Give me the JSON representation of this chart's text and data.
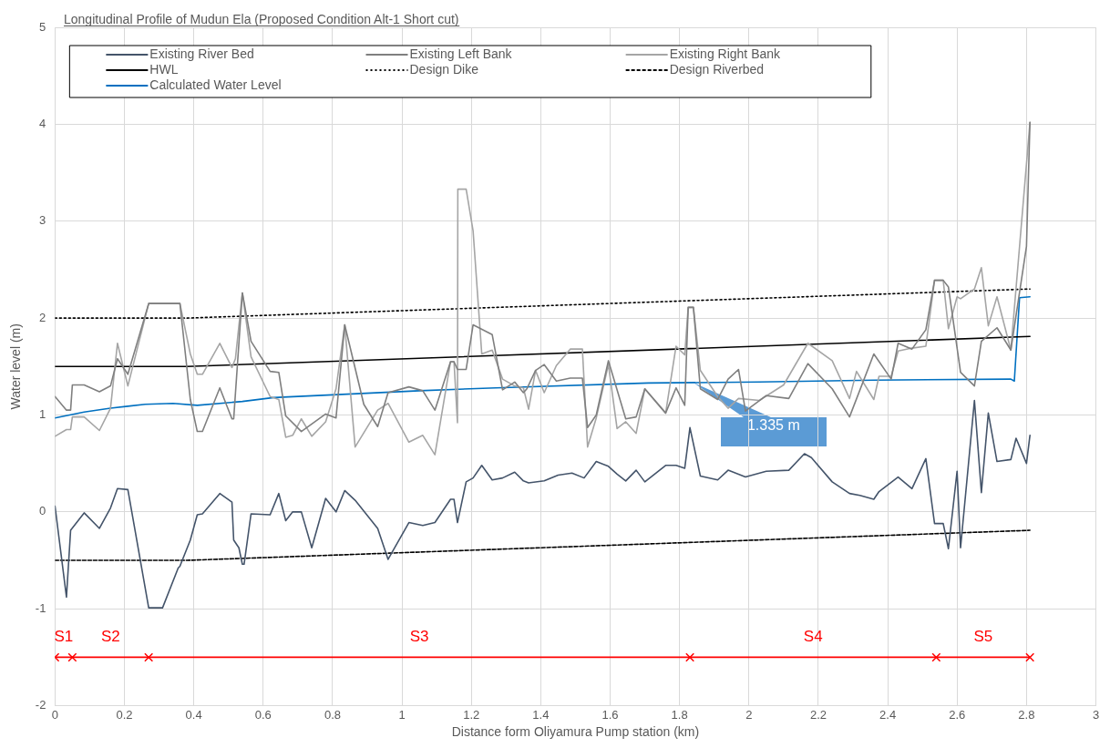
{
  "chart_data": {
    "type": "line",
    "title": "Longitudinal Profile of Mudun Ela (Proposed Condition Alt-1 Short cut)",
    "xlabel": "Distance form Oliyamura Pump station (km)",
    "ylabel": "Water level (m)",
    "xlim": [
      0,
      3
    ],
    "xticks": [
      0,
      0.2,
      0.4,
      0.6,
      0.8,
      1,
      1.2,
      1.4,
      1.6,
      1.8,
      2,
      2.2,
      2.4,
      2.6,
      2.8,
      3
    ],
    "ylim": [
      -2,
      5
    ],
    "yticks": [
      -2,
      -1,
      0,
      1,
      2,
      3,
      4,
      5
    ],
    "grid": true,
    "legend": "top",
    "marker": "none",
    "series": [
      {
        "name": "Existing River Bed",
        "color": "#44546a",
        "x": [
          0,
          0.033,
          0.045,
          0.084,
          0.128,
          0.16,
          0.18,
          0.21,
          0.27,
          0.31,
          0.355,
          0.36,
          0.39,
          0.41,
          0.425,
          0.475,
          0.51,
          0.515,
          0.53,
          0.54,
          0.545,
          0.565,
          0.62,
          0.645,
          0.665,
          0.685,
          0.71,
          0.74,
          0.78,
          0.81,
          0.835,
          0.865,
          0.93,
          0.96,
          1.02,
          1.06,
          1.095,
          1.14,
          1.15,
          1.16,
          1.185,
          1.205,
          1.23,
          1.26,
          1.29,
          1.325,
          1.35,
          1.365,
          1.41,
          1.45,
          1.49,
          1.525,
          1.56,
          1.595,
          1.62,
          1.645,
          1.675,
          1.7,
          1.76,
          1.79,
          1.815,
          1.83,
          1.86,
          1.91,
          1.94,
          1.99,
          2.05,
          2.115,
          2.16,
          2.18,
          2.24,
          2.29,
          2.32,
          2.36,
          2.375,
          2.43,
          2.47,
          2.51,
          2.535,
          2.56,
          2.575,
          2.6,
          2.61,
          2.65,
          2.67,
          2.69,
          2.715,
          2.755,
          2.77,
          2.8,
          2.81
        ],
        "values": [
          0.06,
          -0.88,
          -0.19,
          -0.01,
          -0.17,
          0.04,
          0.24,
          0.23,
          -0.99,
          -0.99,
          -0.58,
          -0.56,
          -0.29,
          -0.03,
          -0.02,
          0.19,
          0.1,
          -0.29,
          -0.37,
          -0.54,
          -0.54,
          -0.02,
          -0.03,
          0.19,
          -0.09,
          0,
          0,
          -0.37,
          0.14,
          0,
          0.22,
          0.12,
          -0.17,
          -0.49,
          -0.11,
          -0.14,
          -0.11,
          0.13,
          0.13,
          -0.11,
          0.31,
          0.35,
          0.48,
          0.33,
          0.35,
          0.41,
          0.32,
          0.3,
          0.32,
          0.38,
          0.4,
          0.35,
          0.52,
          0.47,
          0.39,
          0.32,
          0.43,
          0.31,
          0.48,
          0.48,
          0.45,
          0.87,
          0.37,
          0.33,
          0.43,
          0.36,
          0.42,
          0.43,
          0.6,
          0.56,
          0.31,
          0.19,
          0.17,
          0.13,
          0.21,
          0.36,
          0.24,
          0.55,
          -0.12,
          -0.12,
          -0.38,
          0.42,
          -0.37,
          1.15,
          0.2,
          1.02,
          0.52,
          0.54,
          0.76,
          0.5,
          0.79
        ]
      },
      {
        "name": "Existing Left Bank",
        "color": "#7f7f7f",
        "x": [
          0,
          0.033,
          0.045,
          0.05,
          0.084,
          0.128,
          0.16,
          0.18,
          0.21,
          0.27,
          0.36,
          0.39,
          0.41,
          0.425,
          0.475,
          0.51,
          0.515,
          0.54,
          0.565,
          0.62,
          0.645,
          0.665,
          0.71,
          0.78,
          0.81,
          0.835,
          0.89,
          0.93,
          0.96,
          1.02,
          1.06,
          1.095,
          1.14,
          1.15,
          1.16,
          1.185,
          1.205,
          1.26,
          1.29,
          1.325,
          1.35,
          1.36,
          1.385,
          1.41,
          1.445,
          1.485,
          1.52,
          1.535,
          1.56,
          1.595,
          1.645,
          1.675,
          1.7,
          1.76,
          1.79,
          1.815,
          1.825,
          1.84,
          1.86,
          1.91,
          1.94,
          1.97,
          1.99,
          2.05,
          2.115,
          2.17,
          2.24,
          2.29,
          2.36,
          2.41,
          2.43,
          2.47,
          2.51,
          2.535,
          2.56,
          2.575,
          2.61,
          2.65,
          2.67,
          2.715,
          2.755,
          2.8,
          2.81
        ],
        "values": [
          1.19,
          1.05,
          1.05,
          1.31,
          1.31,
          1.24,
          1.3,
          1.58,
          1.42,
          2.15,
          2.15,
          1.16,
          0.83,
          0.83,
          1.28,
          0.96,
          0.96,
          2.26,
          1.76,
          1.45,
          1.44,
          0.99,
          0.83,
          1.01,
          0.97,
          1.93,
          1.11,
          0.88,
          1.23,
          1.29,
          1.25,
          1.05,
          1.55,
          1.55,
          1.47,
          1.47,
          1.93,
          1.83,
          1.26,
          1.34,
          1.23,
          1.27,
          1.46,
          1.52,
          1.35,
          1.38,
          1.38,
          0.87,
          1,
          1.56,
          0.96,
          0.98,
          1.27,
          1.02,
          1.28,
          1.1,
          2.11,
          2.11,
          1.27,
          1.16,
          1.37,
          1.47,
          1.04,
          1.2,
          1.17,
          1.53,
          1.27,
          0.98,
          1.63,
          1.37,
          1.74,
          1.68,
          1.88,
          2.39,
          2.39,
          2.32,
          1.44,
          1.3,
          1.76,
          1.9,
          1.67,
          2.74,
          4.02
        ]
      },
      {
        "name": "Existing Right Bank",
        "color": "#a5a5a5",
        "x": [
          0,
          0.033,
          0.045,
          0.05,
          0.084,
          0.128,
          0.16,
          0.18,
          0.21,
          0.27,
          0.36,
          0.39,
          0.41,
          0.425,
          0.475,
          0.51,
          0.52,
          0.54,
          0.565,
          0.62,
          0.645,
          0.665,
          0.685,
          0.71,
          0.74,
          0.78,
          0.81,
          0.835,
          0.865,
          0.93,
          0.96,
          1.02,
          1.06,
          1.095,
          1.14,
          1.15,
          1.16,
          1.161,
          1.185,
          1.205,
          1.23,
          1.26,
          1.29,
          1.325,
          1.35,
          1.365,
          1.385,
          1.41,
          1.445,
          1.485,
          1.52,
          1.535,
          1.56,
          1.595,
          1.62,
          1.645,
          1.675,
          1.7,
          1.76,
          1.79,
          1.815,
          1.825,
          1.84,
          1.86,
          1.91,
          1.94,
          1.97,
          2.03,
          2.1,
          2.17,
          2.24,
          2.29,
          2.31,
          2.36,
          2.375,
          2.41,
          2.43,
          2.47,
          2.51,
          2.535,
          2.56,
          2.575,
          2.6,
          2.61,
          2.65,
          2.67,
          2.69,
          2.715,
          2.755,
          2.81
        ],
        "values": [
          0.78,
          0.85,
          0.85,
          0.98,
          0.98,
          0.84,
          1.07,
          1.74,
          1.3,
          2.15,
          2.15,
          1.63,
          1.42,
          1.42,
          1.74,
          1.49,
          1.58,
          2.26,
          1.6,
          1.19,
          1.16,
          0.77,
          0.79,
          0.96,
          0.78,
          0.93,
          1.27,
          1.93,
          0.67,
          1.05,
          1.12,
          0.72,
          0.79,
          0.59,
          1.55,
          1.55,
          0.92,
          3.33,
          3.33,
          2.9,
          1.63,
          1.67,
          1.37,
          1.3,
          1.28,
          1.06,
          1.46,
          1.23,
          1.51,
          1.68,
          1.68,
          0.67,
          0.97,
          1.52,
          0.86,
          0.93,
          0.81,
          1.27,
          1.02,
          1.71,
          1.62,
          2.11,
          2.11,
          1.46,
          1.19,
          1.07,
          1.17,
          1.15,
          1.31,
          1.74,
          1.56,
          1.17,
          1.45,
          1.16,
          1.4,
          1.4,
          1.66,
          1.69,
          1.71,
          2.39,
          2.39,
          1.89,
          2.22,
          2.2,
          2.3,
          2.52,
          1.92,
          2.22,
          1.67,
          4.02
        ]
      },
      {
        "name": "HWL",
        "color": "#000000",
        "x": [
          0,
          0.38,
          2.81
        ],
        "values": [
          1.5,
          1.5,
          1.81
        ]
      },
      {
        "name": "Design Dike",
        "color": "#000000",
        "line_style": "dotted",
        "x": [
          0,
          0.38,
          2.81
        ],
        "values": [
          2,
          2,
          2.3
        ]
      },
      {
        "name": "Design Riverbed",
        "color": "#000000",
        "line_style": "dashed",
        "x": [
          0,
          0.38,
          2.81
        ],
        "values": [
          -0.5,
          -0.5,
          -0.19
        ]
      },
      {
        "name": "Calculated Water Level",
        "color": "#0070c0",
        "x": [
          0,
          0.084,
          0.16,
          0.21,
          0.26,
          0.34,
          0.41,
          0.54,
          0.63,
          0.87,
          1.05,
          1.27,
          1.71,
          2.03,
          2.36,
          2.755,
          2.765,
          2.78,
          2.81
        ],
        "values": [
          0.97,
          1.03,
          1.07,
          1.09,
          1.11,
          1.12,
          1.1,
          1.14,
          1.18,
          1.22,
          1.25,
          1.28,
          1.33,
          1.34,
          1.36,
          1.37,
          1.35,
          2.21,
          2.22
        ]
      },
      {
        "color": "#ff0000",
        "marker": "cross",
        "x": [
          0,
          0.05,
          0.27,
          1.83,
          2.54,
          2.81
        ],
        "values": [
          -1.5,
          -1.5,
          -1.5,
          -1.5,
          -1.5,
          -1.5
        ]
      }
    ],
    "annotations": [
      "S1",
      "S2",
      "S3",
      "S4",
      "S5",
      {
        "text": "1.335 m",
        "x": 1.84,
        "y": 1.335
      }
    ]
  }
}
